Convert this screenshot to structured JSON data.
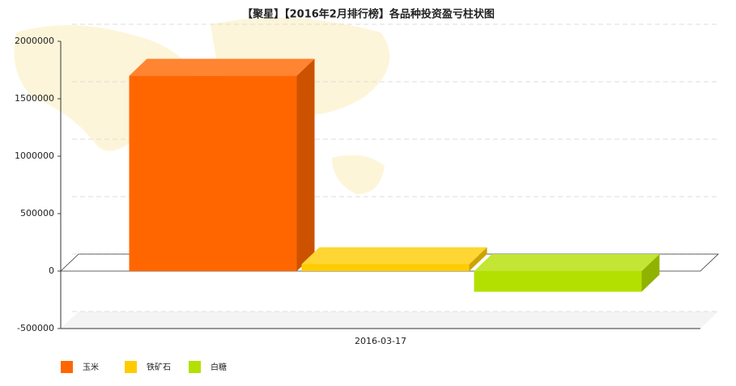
{
  "chart_data": {
    "type": "bar3d",
    "title": "【聚星】【2016年2月排行榜】各品种投资盈亏柱状图",
    "categories": [
      "2016-03-17"
    ],
    "series": [
      {
        "name": "玉米",
        "color": "#ff6600",
        "values": [
          1700000
        ]
      },
      {
        "name": "铁矿石",
        "color": "#ffcc00",
        "values": [
          60000
        ]
      },
      {
        "name": "白糖",
        "color": "#b3e000",
        "values": [
          -180000
        ]
      }
    ],
    "ylim": [
      -500000,
      2000000
    ],
    "yticks": [
      -500000,
      0,
      500000,
      1000000,
      1500000,
      2000000
    ],
    "grid": true
  }
}
